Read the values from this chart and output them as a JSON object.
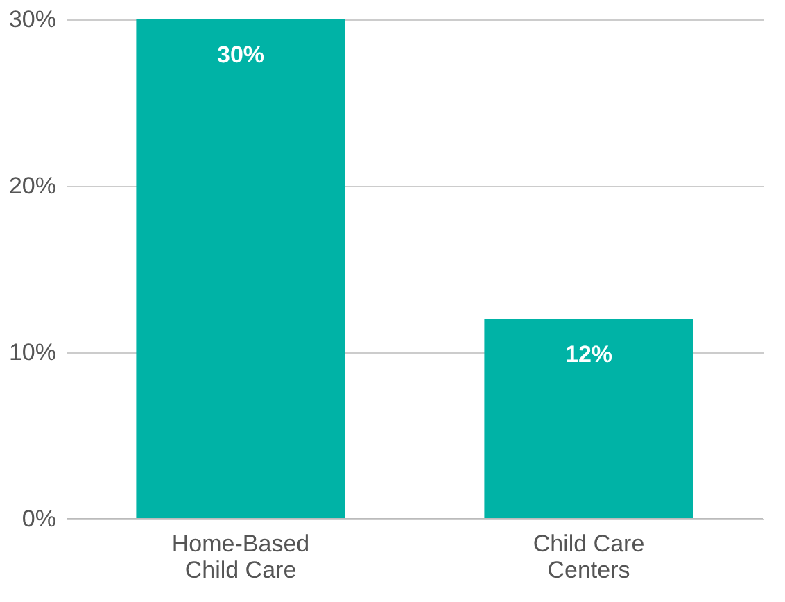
{
  "chart_data": {
    "type": "bar",
    "categories": [
      "Home-Based Child Care",
      "Child Care Centers"
    ],
    "values": [
      30,
      12
    ],
    "color": "#00b3a6",
    "value_labels": [
      "30%",
      "12%"
    ],
    "ylim": [
      0,
      30
    ],
    "yticks": [
      {
        "value": 0,
        "label": "0%"
      },
      {
        "value": 10,
        "label": "10%"
      },
      {
        "value": 20,
        "label": "20%"
      },
      {
        "value": 30,
        "label": "30%"
      }
    ],
    "grid": "y"
  }
}
